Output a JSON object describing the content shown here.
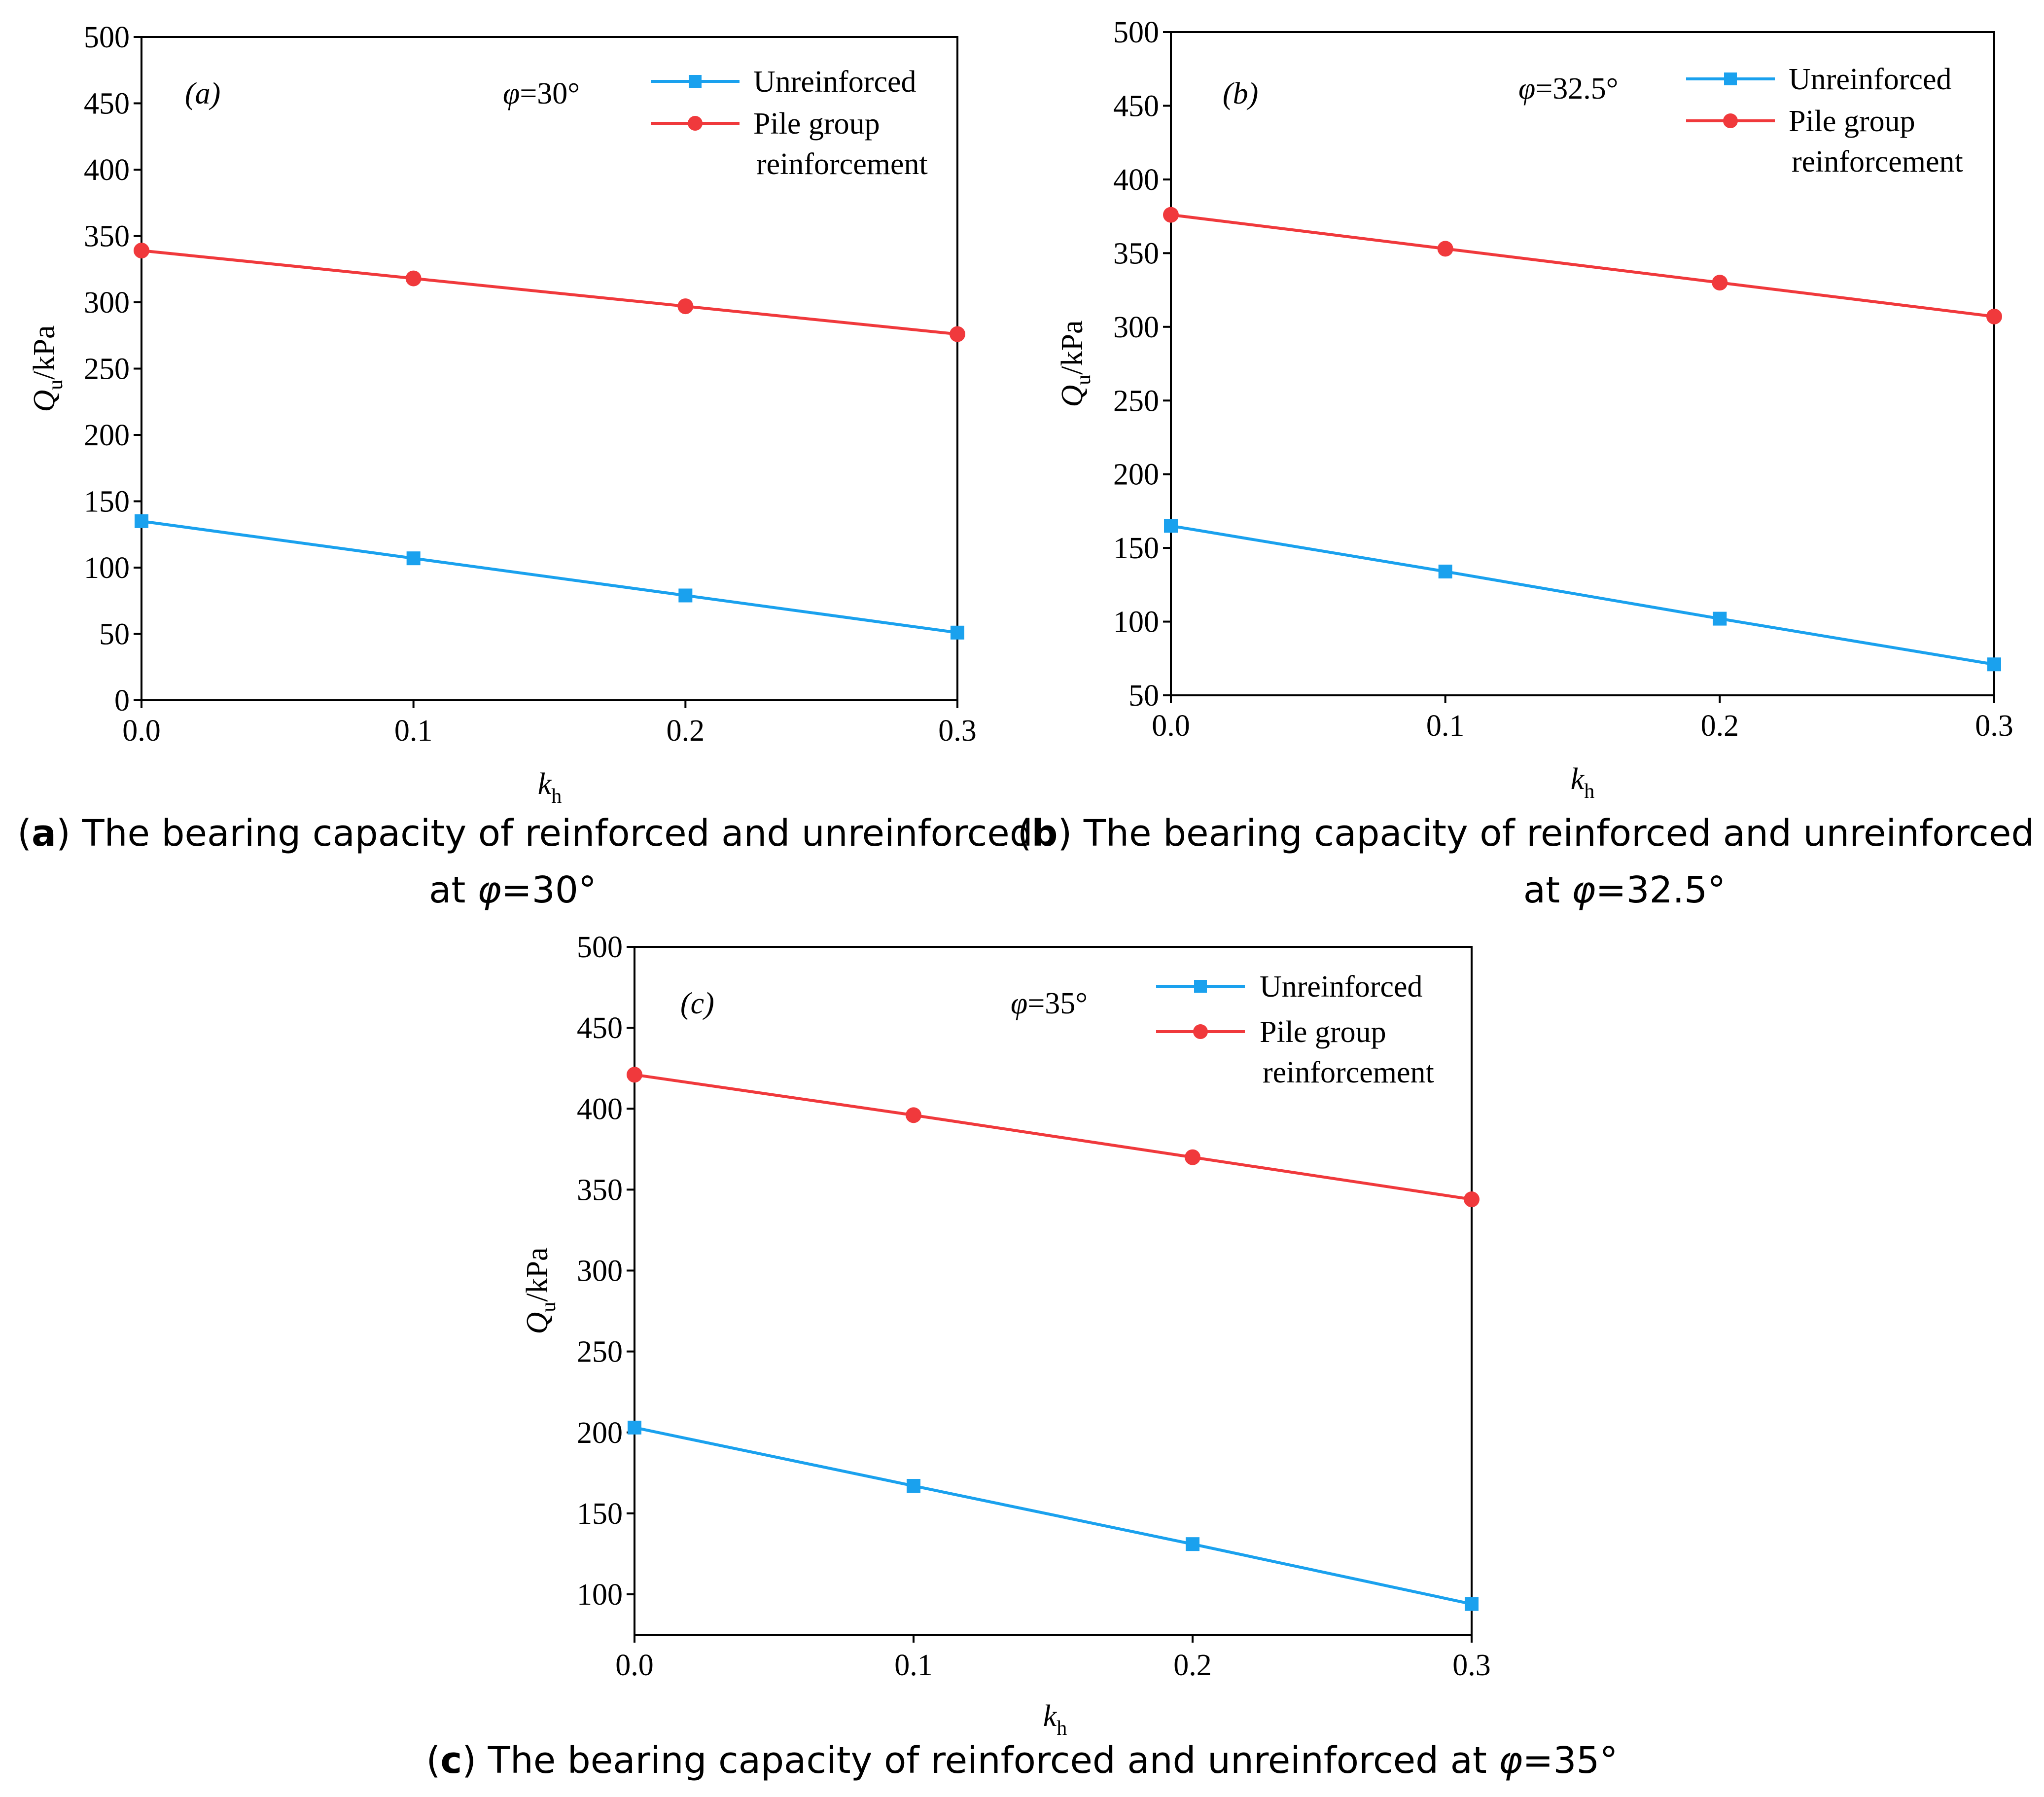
{
  "colors": {
    "unreinforced": "#1aa1ee",
    "reinforced": "#f0393c",
    "axis": "#000000"
  },
  "x_label_main": "k",
  "x_label_sub": "h",
  "y_label_main": "Q",
  "y_label_sub": "u",
  "y_label_unit": "/kPa",
  "chart_data": [
    {
      "type": "line",
      "id": "a",
      "panel_label": "(a)",
      "phi_symbol": "φ",
      "phi_text": "=30°",
      "x": [
        0.0,
        0.1,
        0.2,
        0.3
      ],
      "x_ticks": [
        "0.0",
        "0.1",
        "0.2",
        "0.3"
      ],
      "xlim": [
        0.0,
        0.3
      ],
      "ylim": [
        0,
        500
      ],
      "y_ticks": [
        0,
        50,
        100,
        150,
        200,
        250,
        300,
        350,
        400,
        450,
        500
      ],
      "series": [
        {
          "name": "Unreinforced",
          "legend_lines": [
            "Unreinforced"
          ],
          "marker": "square",
          "color_key": "unreinforced",
          "values": [
            135,
            107,
            79,
            51
          ]
        },
        {
          "name": "Pile group reinforcement",
          "legend_lines": [
            "Pile group",
            "reinforcement"
          ],
          "marker": "circle",
          "color_key": "reinforced",
          "values": [
            339,
            318,
            297,
            276
          ]
        }
      ],
      "caption_label": "(a)",
      "caption_lines": [
        "The bearing capacity of reinforced and unreinforced",
        "at φ=30°"
      ]
    },
    {
      "type": "line",
      "id": "b",
      "panel_label": "(b)",
      "phi_symbol": "φ",
      "phi_text": "=32.5°",
      "x": [
        0.0,
        0.1,
        0.2,
        0.3
      ],
      "x_ticks": [
        "0.0",
        "0.1",
        "0.2",
        "0.3"
      ],
      "xlim": [
        0.0,
        0.3
      ],
      "ylim": [
        50,
        500
      ],
      "y_ticks": [
        50,
        100,
        150,
        200,
        250,
        300,
        350,
        400,
        450,
        500
      ],
      "series": [
        {
          "name": "Unreinforced",
          "legend_lines": [
            "Unreinforced"
          ],
          "marker": "square",
          "color_key": "unreinforced",
          "values": [
            165,
            134,
            102,
            71
          ]
        },
        {
          "name": "Pile group reinforcement",
          "legend_lines": [
            "Pile group",
            "reinforcement"
          ],
          "marker": "circle",
          "color_key": "reinforced",
          "values": [
            376,
            353,
            330,
            307
          ]
        }
      ],
      "caption_label": "(b)",
      "caption_lines": [
        "The bearing capacity of reinforced and unreinforced",
        "at φ=32.5°"
      ]
    },
    {
      "type": "line",
      "id": "c",
      "panel_label": "(c)",
      "phi_symbol": "φ",
      "phi_text": "=35°",
      "x": [
        0.0,
        0.1,
        0.2,
        0.3
      ],
      "x_ticks": [
        "0.0",
        "0.1",
        "0.2",
        "0.3"
      ],
      "xlim": [
        0.0,
        0.3
      ],
      "ylim": [
        75,
        500
      ],
      "y_ticks": [
        100,
        150,
        200,
        250,
        300,
        350,
        400,
        450,
        500
      ],
      "series": [
        {
          "name": "Unreinforced",
          "legend_lines": [
            "Unreinforced"
          ],
          "marker": "square",
          "color_key": "unreinforced",
          "values": [
            203,
            167,
            131,
            94
          ]
        },
        {
          "name": "Pile group reinforcement",
          "legend_lines": [
            "Pile group",
            "reinforcement"
          ],
          "marker": "circle",
          "color_key": "reinforced",
          "values": [
            421,
            396,
            370,
            344
          ]
        }
      ],
      "caption_label": "(c)",
      "caption_lines": [
        "The bearing capacity of reinforced and unreinforced at φ=35°"
      ]
    }
  ]
}
